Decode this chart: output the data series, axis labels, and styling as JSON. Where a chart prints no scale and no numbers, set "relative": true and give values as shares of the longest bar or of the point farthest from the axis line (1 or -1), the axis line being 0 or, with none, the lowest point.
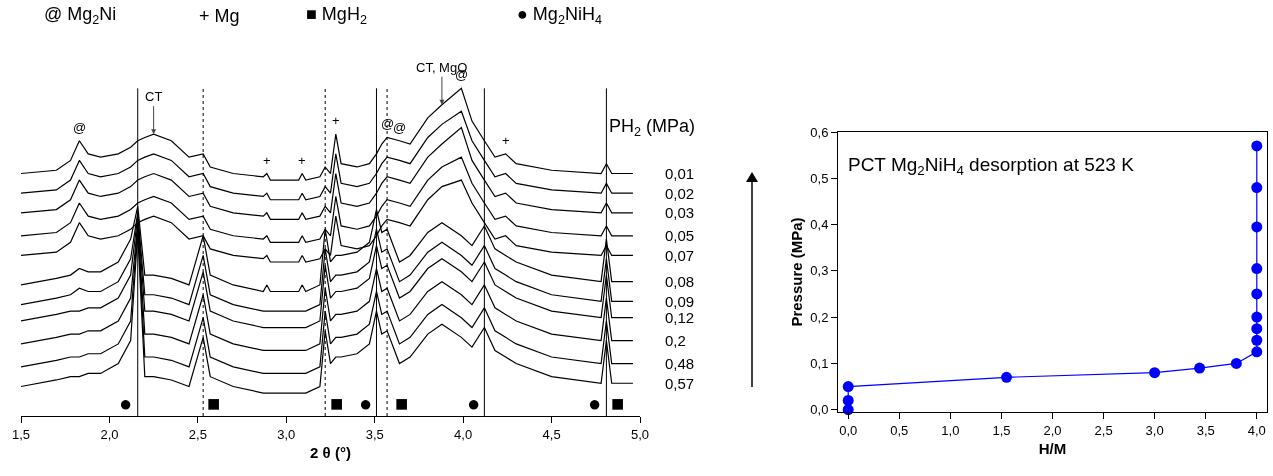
{
  "chart_data": [
    {
      "type": "line",
      "relative": true,
      "xlabel": "2 θ (°)",
      "x": [
        1.5,
        1.7,
        1.78,
        1.83,
        1.88,
        1.95,
        2.05,
        2.12,
        2.16,
        2.2,
        2.25,
        2.35,
        2.45,
        2.53,
        2.57,
        2.7,
        2.87,
        2.89,
        2.91,
        3.07,
        3.09,
        3.11,
        3.19,
        3.22,
        3.25,
        3.28,
        3.31,
        3.4,
        3.47,
        3.51,
        3.54,
        3.57,
        3.64,
        3.7,
        3.8,
        3.88,
        3.99,
        4.05,
        4.12,
        4.18,
        4.24,
        4.3,
        4.5,
        4.78,
        4.81,
        4.84,
        4.96
      ],
      "xlim": [
        1.5,
        5.0
      ],
      "xticks": [
        {
          "value": 1.5,
          "label": "1,5"
        },
        {
          "value": 2.0,
          "label": "2,0"
        },
        {
          "value": 2.5,
          "label": "2,5"
        },
        {
          "value": 3.0,
          "label": "3,0"
        },
        {
          "value": 3.5,
          "label": "3,5"
        },
        {
          "value": 4.0,
          "label": "4,0"
        },
        {
          "value": 4.5,
          "label": "4,5"
        },
        {
          "value": 5.0,
          "label": "5,0"
        }
      ],
      "series": [
        {
          "name": "0,01",
          "color": "#000000",
          "values": [
            0.74,
            0.75,
            0.78,
            0.84,
            0.8,
            0.79,
            0.8,
            0.82,
            0.84,
            0.85,
            0.86,
            0.84,
            0.79,
            0.8,
            0.76,
            0.74,
            0.73,
            0.74,
            0.72,
            0.72,
            0.74,
            0.72,
            0.73,
            0.76,
            0.74,
            0.86,
            0.77,
            0.76,
            0.77,
            0.8,
            0.83,
            0.85,
            0.84,
            0.83,
            0.91,
            0.95,
            1.0,
            0.9,
            0.84,
            0.79,
            0.8,
            0.77,
            0.75,
            0.74,
            0.77,
            0.74,
            0.74
          ]
        },
        {
          "name": "0,02",
          "color": "#000000",
          "values": [
            0.68,
            0.69,
            0.72,
            0.78,
            0.74,
            0.73,
            0.74,
            0.76,
            0.78,
            0.79,
            0.8,
            0.78,
            0.73,
            0.74,
            0.7,
            0.68,
            0.67,
            0.68,
            0.66,
            0.66,
            0.68,
            0.66,
            0.67,
            0.7,
            0.68,
            0.8,
            0.71,
            0.7,
            0.71,
            0.74,
            0.77,
            0.79,
            0.78,
            0.77,
            0.85,
            0.89,
            0.93,
            0.84,
            0.78,
            0.73,
            0.74,
            0.71,
            0.69,
            0.68,
            0.71,
            0.68,
            0.68
          ]
        },
        {
          "name": "0,03",
          "color": "#000000",
          "values": [
            0.62,
            0.63,
            0.66,
            0.72,
            0.68,
            0.67,
            0.68,
            0.7,
            0.72,
            0.73,
            0.74,
            0.72,
            0.67,
            0.68,
            0.64,
            0.62,
            0.61,
            0.62,
            0.6,
            0.6,
            0.62,
            0.6,
            0.61,
            0.64,
            0.62,
            0.74,
            0.65,
            0.64,
            0.65,
            0.68,
            0.71,
            0.73,
            0.72,
            0.71,
            0.79,
            0.83,
            0.88,
            0.78,
            0.72,
            0.67,
            0.68,
            0.65,
            0.63,
            0.62,
            0.65,
            0.62,
            0.62
          ]
        },
        {
          "name": "0,05",
          "color": "#000000",
          "values": [
            0.55,
            0.56,
            0.59,
            0.65,
            0.61,
            0.6,
            0.61,
            0.63,
            0.65,
            0.66,
            0.67,
            0.65,
            0.6,
            0.61,
            0.57,
            0.55,
            0.54,
            0.55,
            0.53,
            0.53,
            0.55,
            0.53,
            0.54,
            0.57,
            0.55,
            0.67,
            0.58,
            0.57,
            0.58,
            0.61,
            0.64,
            0.66,
            0.65,
            0.64,
            0.72,
            0.76,
            0.79,
            0.71,
            0.65,
            0.6,
            0.61,
            0.58,
            0.56,
            0.55,
            0.58,
            0.55,
            0.55
          ]
        },
        {
          "name": "0,07",
          "color": "#000000",
          "values": [
            0.49,
            0.5,
            0.53,
            0.59,
            0.55,
            0.54,
            0.55,
            0.57,
            0.59,
            0.6,
            0.61,
            0.59,
            0.54,
            0.55,
            0.51,
            0.49,
            0.48,
            0.49,
            0.47,
            0.47,
            0.49,
            0.47,
            0.48,
            0.51,
            0.49,
            0.61,
            0.52,
            0.51,
            0.52,
            0.55,
            0.58,
            0.6,
            0.59,
            0.58,
            0.66,
            0.7,
            0.72,
            0.65,
            0.59,
            0.54,
            0.55,
            0.52,
            0.5,
            0.49,
            0.52,
            0.49,
            0.49
          ]
        },
        {
          "name": "0,08",
          "color": "#000000",
          "values": [
            0.4,
            0.42,
            0.43,
            0.45,
            0.44,
            0.44,
            0.47,
            0.54,
            0.64,
            0.43,
            0.43,
            0.42,
            0.4,
            0.55,
            0.43,
            0.4,
            0.38,
            0.4,
            0.38,
            0.38,
            0.4,
            0.38,
            0.4,
            0.57,
            0.47,
            0.49,
            0.49,
            0.5,
            0.53,
            0.63,
            0.56,
            0.57,
            0.47,
            0.49,
            0.56,
            0.59,
            0.55,
            0.52,
            0.58,
            0.51,
            0.49,
            0.47,
            0.43,
            0.41,
            0.54,
            0.41,
            0.41
          ]
        },
        {
          "name": "0,09",
          "color": "#000000",
          "values": [
            0.34,
            0.36,
            0.37,
            0.39,
            0.38,
            0.38,
            0.41,
            0.48,
            0.62,
            0.37,
            0.37,
            0.36,
            0.34,
            0.49,
            0.37,
            0.34,
            0.32,
            0.32,
            0.32,
            0.32,
            0.32,
            0.32,
            0.34,
            0.51,
            0.41,
            0.43,
            0.43,
            0.44,
            0.47,
            0.57,
            0.5,
            0.51,
            0.41,
            0.43,
            0.5,
            0.53,
            0.49,
            0.46,
            0.52,
            0.45,
            0.43,
            0.41,
            0.37,
            0.35,
            0.48,
            0.35,
            0.35
          ]
        },
        {
          "name": "0,12",
          "color": "#000000",
          "values": [
            0.29,
            0.31,
            0.32,
            0.32,
            0.33,
            0.33,
            0.36,
            0.43,
            0.61,
            0.32,
            0.32,
            0.31,
            0.29,
            0.44,
            0.32,
            0.29,
            0.27,
            0.27,
            0.27,
            0.27,
            0.27,
            0.27,
            0.29,
            0.46,
            0.36,
            0.38,
            0.38,
            0.39,
            0.42,
            0.52,
            0.45,
            0.46,
            0.36,
            0.38,
            0.45,
            0.48,
            0.44,
            0.41,
            0.47,
            0.4,
            0.38,
            0.36,
            0.32,
            0.3,
            0.43,
            0.3,
            0.3
          ]
        },
        {
          "name": "0,2",
          "color": "#000000",
          "values": [
            0.22,
            0.24,
            0.25,
            0.25,
            0.26,
            0.26,
            0.29,
            0.36,
            0.59,
            0.25,
            0.25,
            0.24,
            0.22,
            0.37,
            0.25,
            0.22,
            0.2,
            0.2,
            0.2,
            0.2,
            0.2,
            0.2,
            0.22,
            0.39,
            0.29,
            0.31,
            0.31,
            0.32,
            0.35,
            0.45,
            0.38,
            0.39,
            0.29,
            0.31,
            0.38,
            0.41,
            0.37,
            0.34,
            0.4,
            0.33,
            0.31,
            0.29,
            0.25,
            0.23,
            0.36,
            0.23,
            0.23
          ]
        },
        {
          "name": "0,48",
          "color": "#000000",
          "values": [
            0.15,
            0.17,
            0.18,
            0.18,
            0.19,
            0.19,
            0.22,
            0.29,
            0.58,
            0.18,
            0.18,
            0.17,
            0.15,
            0.3,
            0.18,
            0.15,
            0.13,
            0.13,
            0.13,
            0.13,
            0.13,
            0.13,
            0.15,
            0.32,
            0.22,
            0.24,
            0.24,
            0.25,
            0.28,
            0.38,
            0.31,
            0.32,
            0.22,
            0.24,
            0.31,
            0.34,
            0.3,
            0.27,
            0.33,
            0.26,
            0.24,
            0.22,
            0.18,
            0.16,
            0.29,
            0.16,
            0.16
          ]
        },
        {
          "name": "0,57",
          "color": "#000000",
          "values": [
            0.09,
            0.11,
            0.12,
            0.12,
            0.13,
            0.13,
            0.16,
            0.23,
            0.56,
            0.12,
            0.12,
            0.11,
            0.09,
            0.24,
            0.12,
            0.09,
            0.07,
            0.07,
            0.07,
            0.07,
            0.07,
            0.07,
            0.09,
            0.26,
            0.16,
            0.18,
            0.18,
            0.19,
            0.22,
            0.32,
            0.25,
            0.26,
            0.16,
            0.18,
            0.25,
            0.28,
            0.24,
            0.21,
            0.27,
            0.2,
            0.18,
            0.16,
            0.12,
            0.1,
            0.23,
            0.1,
            0.1
          ]
        }
      ],
      "ref_lines": [
        {
          "axis": "x",
          "value": 2.16,
          "line_style": "solid",
          "color": "#000000"
        },
        {
          "axis": "x",
          "value": 3.51,
          "line_style": "solid",
          "color": "#000000"
        },
        {
          "axis": "x",
          "value": 4.12,
          "line_style": "solid",
          "color": "#000000"
        },
        {
          "axis": "x",
          "value": 4.81,
          "line_style": "solid",
          "color": "#000000"
        },
        {
          "axis": "x",
          "value": 2.53,
          "line_style": "dotted",
          "color": "#000000"
        },
        {
          "axis": "x",
          "value": 3.22,
          "line_style": "dotted",
          "color": "#000000"
        },
        {
          "axis": "x",
          "value": 3.57,
          "line_style": "dotted",
          "color": "#000000"
        }
      ],
      "annotations": [
        "@ Mg$_{2}$Ni",
        "+ Mg",
        "■ MgH$_{2}$",
        "● Mg$_{2}$NiH$_{4}$",
        "PH$_{2}$ (MPa)",
        {
          "text": "@",
          "x": 1.83,
          "y": 0.84
        },
        {
          "text": "CT",
          "x": 2.25,
          "y": 0.86
        },
        {
          "text": "+",
          "x": 2.89,
          "y": 0.74
        },
        {
          "text": "+",
          "x": 3.09,
          "y": 0.74
        },
        {
          "text": "+",
          "x": 3.28,
          "y": 0.86
        },
        {
          "text": "@",
          "x": 3.57,
          "y": 0.85
        },
        {
          "text": "@",
          "x": 3.64,
          "y": 0.84
        },
        {
          "text": "CT, MgO",
          "x": 3.88,
          "y": 0.95
        },
        {
          "text": "@",
          "x": 3.99,
          "y": 1.0
        },
        {
          "text": "+",
          "x": 4.24,
          "y": 0.8
        },
        "●",
        "■",
        "■",
        "●",
        "■",
        "●",
        "●",
        "■"
      ]
    },
    {
      "type": "line",
      "title": "PCT Mg$_{2}$NiH$_{4}$ desorption at 523 K",
      "xlabel": "H/M",
      "ylabel": "Pressure (MPa)",
      "marker": "circle",
      "line_style": "solid",
      "x": [
        4.0,
        4.0,
        4.0,
        4.0,
        4.0,
        4.0,
        4.0,
        4.0,
        4.0,
        3.8,
        3.44,
        3.0,
        1.55,
        0.0,
        0.0,
        0.0
      ],
      "series": [
        {
          "color": "#0000ff",
          "values": [
            0.57,
            0.48,
            0.395,
            0.305,
            0.25,
            0.2,
            0.175,
            0.15,
            0.125,
            0.1,
            0.09,
            0.08,
            0.07,
            0.05,
            0.02,
            0.0
          ]
        }
      ],
      "xlim": [
        -0.1,
        4.1
      ],
      "ylim": [
        -0.005,
        0.6
      ],
      "xticks": [
        {
          "value": 0,
          "label": "0,0"
        },
        {
          "value": 0.5,
          "label": "0,5"
        },
        {
          "value": 1.0,
          "label": "1,0"
        },
        {
          "value": 1.5,
          "label": "1,5"
        },
        {
          "value": 2.0,
          "label": "2,0"
        },
        {
          "value": 2.5,
          "label": "2,5"
        },
        {
          "value": 3.0,
          "label": "3,0"
        },
        {
          "value": 3.5,
          "label": "3,5"
        },
        {
          "value": 4.0,
          "label": "4,0"
        }
      ],
      "yticks": [
        {
          "value": 0,
          "label": "0,0"
        },
        {
          "value": 0.1,
          "label": "0,1"
        },
        {
          "value": 0.2,
          "label": "0,2"
        },
        {
          "value": 0.3,
          "label": "0,3"
        },
        {
          "value": 0.4,
          "label": "0,4"
        },
        {
          "value": 0.5,
          "label": "0,5"
        },
        {
          "value": 0.6,
          "label": "0,6"
        }
      ]
    }
  ]
}
